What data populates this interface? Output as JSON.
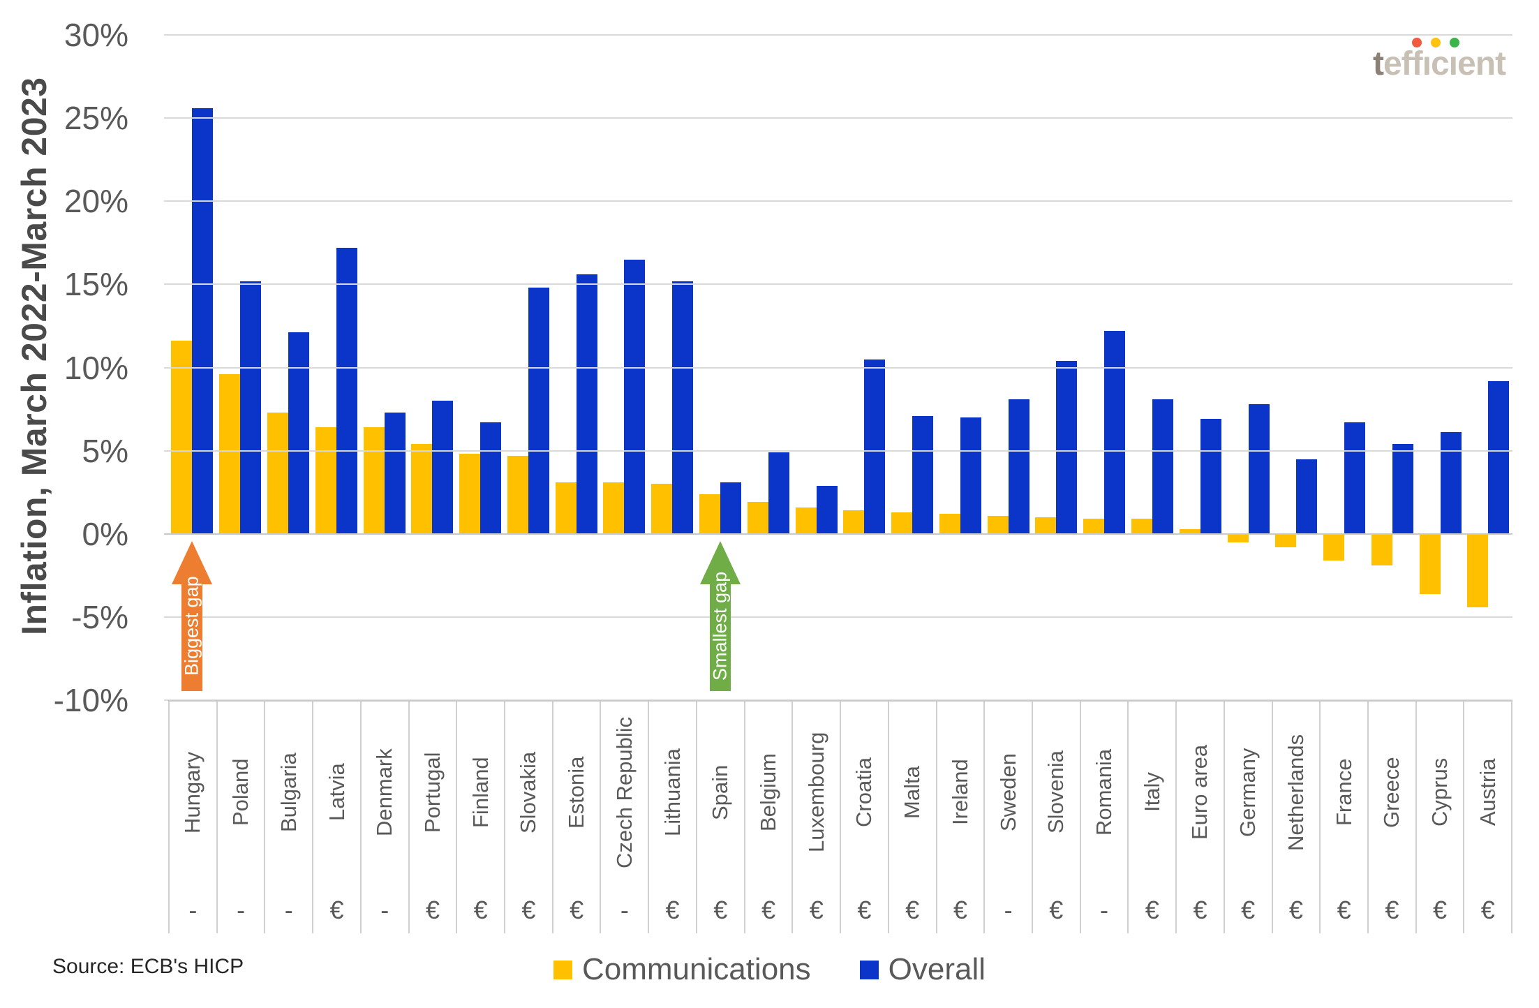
{
  "logo": {
    "text": "tefficient",
    "dot_colors": [
      "#F15B40",
      "#FFC20E",
      "#3BB54A"
    ]
  },
  "y_axis": {
    "title": "Inflation, March 2022-March 2023",
    "ticks": [
      {
        "label": "30%",
        "value": 30
      },
      {
        "label": "25%",
        "value": 25
      },
      {
        "label": "20%",
        "value": 20
      },
      {
        "label": "15%",
        "value": 15
      },
      {
        "label": "10%",
        "value": 10
      },
      {
        "label": "5%",
        "value": 5
      },
      {
        "label": "0%",
        "value": 0
      },
      {
        "label": "-5%",
        "value": -5
      },
      {
        "label": "-10%",
        "value": -10
      }
    ]
  },
  "chart_data": {
    "type": "bar",
    "title": "",
    "xlabel": "",
    "ylabel": "Inflation, March 2022-March 2023",
    "ylim": [
      -10,
      30
    ],
    "grid": true,
    "legend_position": "bottom",
    "categories": [
      "Hungary",
      "Poland",
      "Bulgaria",
      "Latvia",
      "Denmark",
      "Portugal",
      "Finland",
      "Slovakia",
      "Estonia",
      "Czech Republic",
      "Lithuania",
      "Spain",
      "Belgium",
      "Luxembourg",
      "Croatia",
      "Malta",
      "Ireland",
      "Sweden",
      "Slovenia",
      "Romania",
      "Italy",
      "Euro area",
      "Germany",
      "Netherlands",
      "France",
      "Greece",
      "Cyprus",
      "Austria"
    ],
    "currency_row": [
      "-",
      "-",
      "-",
      "€",
      "-",
      "€",
      "€",
      "€",
      "€",
      "-",
      "€",
      "€",
      "€",
      "€",
      "€",
      "€",
      "€",
      "-",
      "€",
      "-",
      "€",
      "€",
      "€",
      "€",
      "€",
      "€",
      "€",
      "€"
    ],
    "series": [
      {
        "name": "Communications",
        "color": "#FFC000",
        "values": [
          11.6,
          9.6,
          7.3,
          6.4,
          6.4,
          5.4,
          4.8,
          4.7,
          3.1,
          3.1,
          3.0,
          2.4,
          1.9,
          1.6,
          1.4,
          1.3,
          1.2,
          1.1,
          1.0,
          0.9,
          0.9,
          0.3,
          -0.5,
          -0.8,
          -1.6,
          -1.9,
          -3.6,
          -4.4
        ]
      },
      {
        "name": "Overall",
        "color": "#0B35C9",
        "values": [
          25.6,
          15.2,
          12.1,
          17.2,
          7.3,
          8.0,
          6.7,
          14.8,
          15.6,
          16.5,
          15.2,
          3.1,
          4.9,
          2.9,
          10.5,
          7.1,
          7.0,
          8.1,
          10.4,
          12.2,
          8.1,
          6.9,
          7.8,
          4.5,
          6.7,
          5.4,
          6.1,
          9.2
        ]
      }
    ],
    "annotations": [
      {
        "text": "Biggest gap",
        "target": "Hungary",
        "color": "#ED7D31"
      },
      {
        "text": "Smallest gap",
        "target": "Spain",
        "color": "#70AD47"
      }
    ]
  },
  "legend": {
    "items": [
      {
        "label": "Communications",
        "color": "#FFC000"
      },
      {
        "label": "Overall",
        "color": "#0B35C9"
      }
    ]
  },
  "source": {
    "text": "Source: ECB's HICP"
  }
}
